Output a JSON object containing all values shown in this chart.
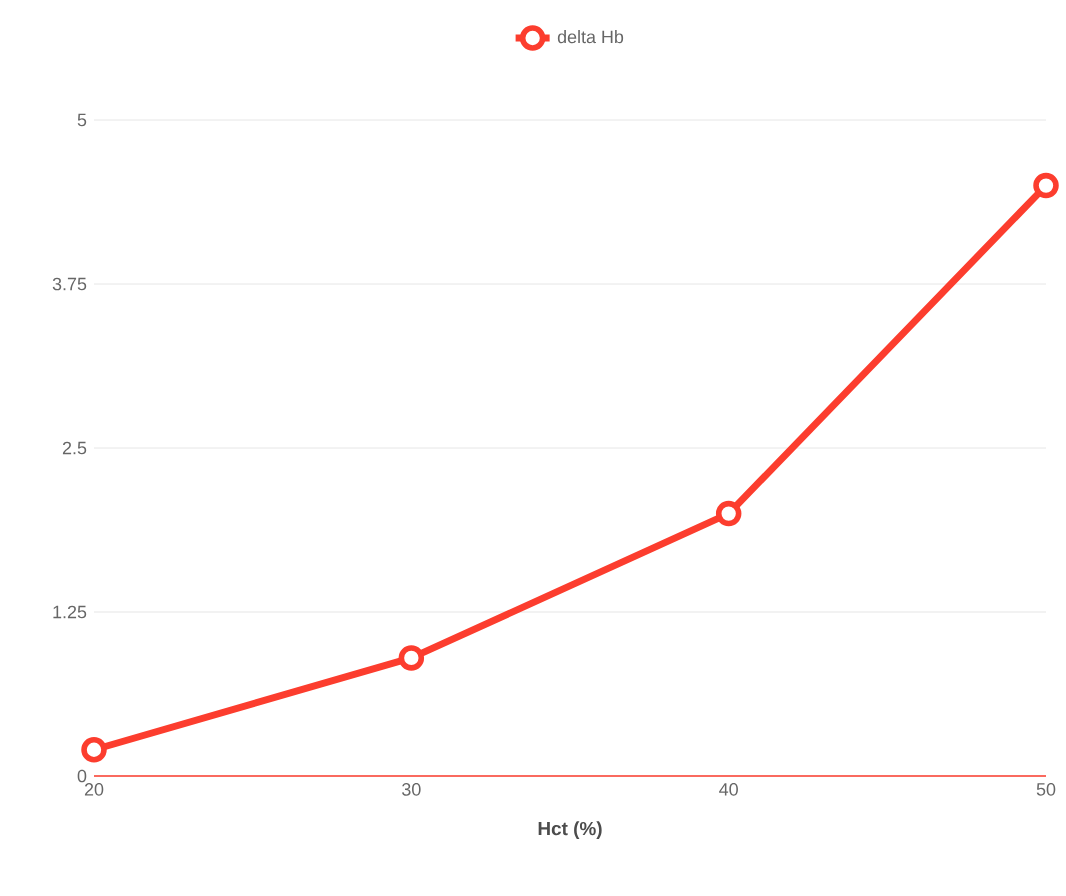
{
  "chart_data": {
    "type": "line",
    "xlabel": "Hct (%)",
    "x": [
      20,
      30,
      40,
      50
    ],
    "series": [
      {
        "name": "delta Hb",
        "color": "#fc3d2e",
        "values": [
          0.2,
          0.9,
          2.0,
          4.5
        ]
      }
    ],
    "xlim": [
      20,
      50
    ],
    "xticks": [
      20,
      30,
      40,
      50
    ],
    "ylim": [
      0,
      5
    ],
    "yticks": [
      0,
      {
        "value": 1.25,
        "label": "1.25"
      },
      {
        "value": 2.5,
        "label": "2.5"
      },
      {
        "value": 3.75,
        "label": "3.75"
      },
      5
    ],
    "grid": "y",
    "legend": "top",
    "marker": "circle",
    "line_style": "solid"
  }
}
